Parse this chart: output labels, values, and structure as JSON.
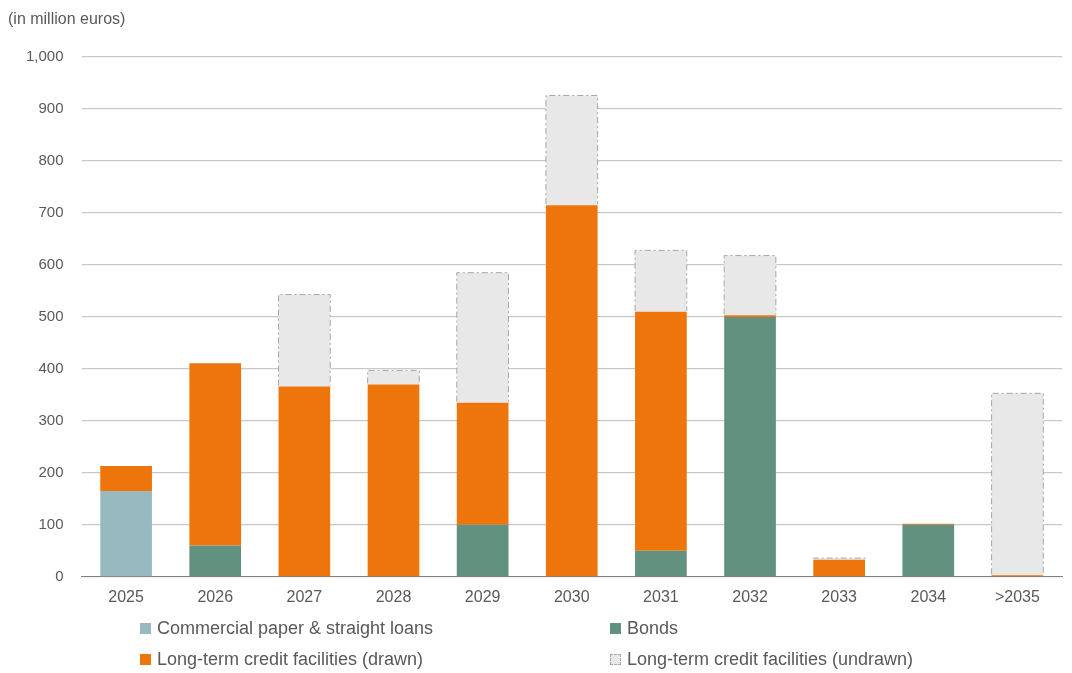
{
  "chart_data": {
    "type": "bar",
    "ylabel": "(in million euros)",
    "stacked": true,
    "grid": "y",
    "legend": "bottom",
    "categories": [
      "2025",
      "2026",
      "2027",
      "2028",
      "2029",
      "2030",
      "2031",
      "2032",
      "2033",
      "2034",
      ">2035"
    ],
    "series": [
      {
        "name": "Commercial paper & straight loans",
        "color": "#97b9c0",
        "values": [
          165,
          0,
          0,
          0,
          0,
          0,
          0,
          0,
          0,
          0,
          0
        ]
      },
      {
        "name": "Bonds",
        "color": "#639180",
        "values": [
          0,
          60,
          0,
          0,
          100,
          0,
          50,
          500,
          0,
          100,
          0
        ]
      },
      {
        "name": "Long-term credit facilities (drawn)",
        "color": "#ed750c",
        "values": [
          48,
          351,
          366,
          370,
          235,
          715,
          460,
          3,
          33,
          2,
          3
        ]
      },
      {
        "name": "Long-term credit facilities (undrawn)",
        "color": "#e8e8e8",
        "line_style": "dashed",
        "values": [
          0,
          0,
          177,
          27,
          250,
          211,
          118,
          115,
          3,
          0,
          350
        ]
      }
    ],
    "ylim": [
      0,
      1000
    ],
    "yticks": [
      0,
      {
        "value": 100,
        "label": "100"
      },
      {
        "value": 200,
        "label": "200"
      },
      {
        "value": 300,
        "label": "300"
      },
      {
        "value": 400,
        "label": "400"
      },
      {
        "value": 500,
        "label": "500"
      },
      {
        "value": 600,
        "label": "600"
      },
      {
        "value": 700,
        "label": "700"
      },
      {
        "value": 800,
        "label": "800"
      },
      {
        "value": 900,
        "label": "900"
      },
      {
        "value": 1000,
        "label": "1,000"
      }
    ]
  }
}
